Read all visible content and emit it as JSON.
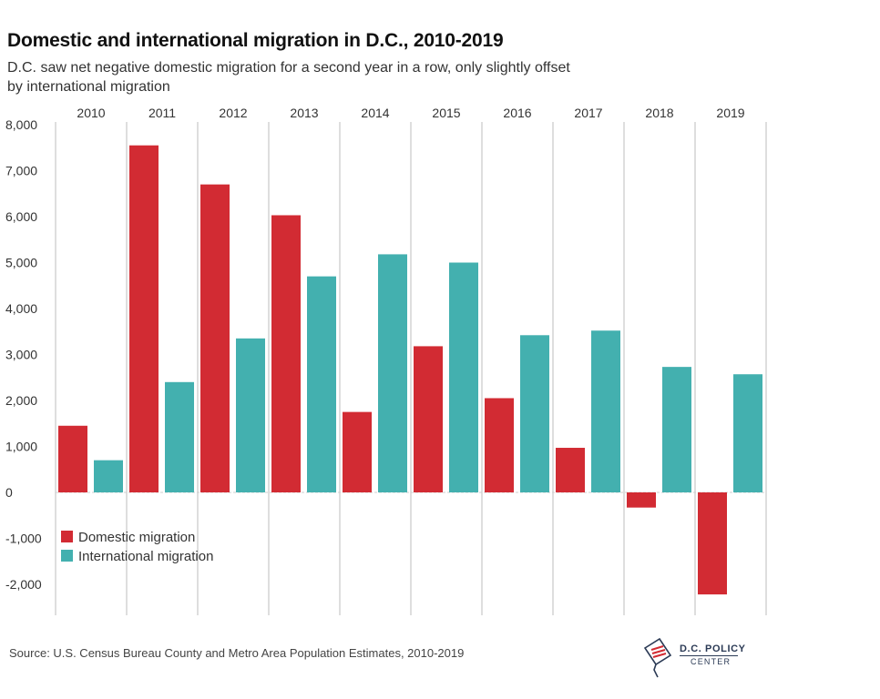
{
  "title": "Domestic and international migration in D.C., 2010-2019",
  "subtitle": "D.C. saw net negative domestic migration for a second year in a row, only slightly offset by international migration",
  "source": "Source: U.S. Census Bureau County and Metro Area Population Estimates, 2010-2019",
  "logo": {
    "line1": "D.C. POLICY",
    "line2": "CENTER"
  },
  "colors": {
    "domestic": "#d22b33",
    "international": "#43b0af",
    "gridline": "#bdbdbd"
  },
  "chart_data": {
    "type": "bar",
    "title": "Domestic and international migration in D.C., 2010-2019",
    "categories": [
      "2010",
      "2011",
      "2012",
      "2013",
      "2014",
      "2015",
      "2016",
      "2017",
      "2018",
      "2019"
    ],
    "series": [
      {
        "name": "Domestic migration",
        "values": [
          1450,
          7550,
          6700,
          6030,
          1750,
          3180,
          2050,
          970,
          -330,
          -2220
        ]
      },
      {
        "name": "International migration",
        "values": [
          700,
          2400,
          3350,
          4700,
          5180,
          5000,
          3420,
          3520,
          2730,
          2570
        ]
      }
    ],
    "ylim": [
      -2200,
      8000
    ],
    "yticks": [
      -2000,
      -1000,
      0,
      1000,
      2000,
      3000,
      4000,
      5000,
      6000,
      7000,
      8000
    ],
    "ytick_labels": [
      "-2,000",
      "-1,000",
      "0",
      "1,000",
      "2,000",
      "3,000",
      "4,000",
      "5,000",
      "6,000",
      "7,000",
      "8,000"
    ],
    "legend_position": "bottom-left",
    "xlabel": "",
    "ylabel": "",
    "grid": "vertical separators between years"
  }
}
